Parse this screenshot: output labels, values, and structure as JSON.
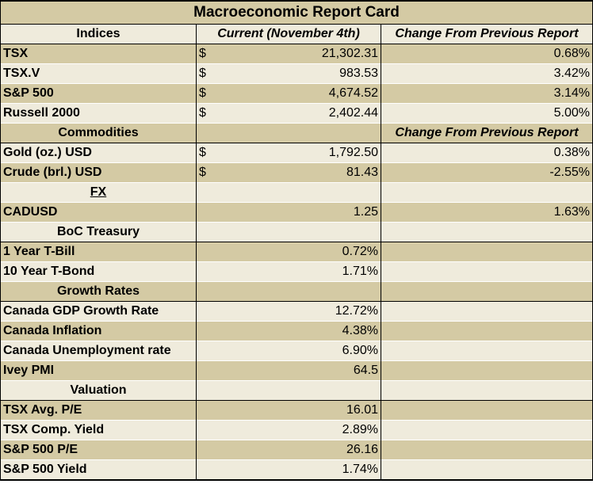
{
  "title": "Macroeconomic Report Card",
  "headers": {
    "indices": "Indices",
    "current": "Current (November 4th)",
    "change": "Change From Previous Report"
  },
  "indices": [
    {
      "name": "TSX",
      "currency": "$",
      "value": "21,302.31",
      "change": "0.68%"
    },
    {
      "name": "TSX.V",
      "currency": "$",
      "value": "983.53",
      "change": "3.42%"
    },
    {
      "name": "S&P 500",
      "currency": "$",
      "value": "4,674.52",
      "change": "3.14%"
    },
    {
      "name": "Russell 2000",
      "currency": "$",
      "value": "2,402.44",
      "change": "5.00%"
    }
  ],
  "commodities_header": "Commodities",
  "commodities_change_header": "Change From Previous Report",
  "commodities": [
    {
      "name": "Gold (oz.) USD",
      "currency": "$",
      "value": "1,792.50",
      "change": "0.38%"
    },
    {
      "name": "Crude (brl.) USD",
      "currency": "$",
      "value": "81.43",
      "change": "-2.55%"
    }
  ],
  "fx_header": "FX",
  "fx": [
    {
      "name": "CADUSD",
      "value": "1.25",
      "change": "1.63%"
    }
  ],
  "boc_header": "BoC Treasury",
  "boc": [
    {
      "name": "1 Year T-Bill",
      "value": "0.72%"
    },
    {
      "name": "10 Year T-Bond",
      "value": "1.71%"
    }
  ],
  "growth_header": "Growth Rates",
  "growth": [
    {
      "name": "Canada GDP Growth Rate",
      "value": "12.72%"
    },
    {
      "name": "Canada Inflation",
      "value": "4.38%"
    },
    {
      "name": "Canada Unemployment rate",
      "value": "6.90%"
    },
    {
      "name": "Ivey PMI",
      "value": "64.5"
    }
  ],
  "valuation_header": "Valuation",
  "valuation": [
    {
      "name": "TSX Avg. P/E",
      "value": "16.01"
    },
    {
      "name": "TSX Comp. Yield",
      "value": "2.89%"
    },
    {
      "name": "S&P 500 P/E",
      "value": "26.16"
    },
    {
      "name": "S&P 500 Yield",
      "value": "1.74%"
    }
  ],
  "colors": {
    "dark_row": "#d4caa4",
    "light_row": "#efebdc"
  }
}
